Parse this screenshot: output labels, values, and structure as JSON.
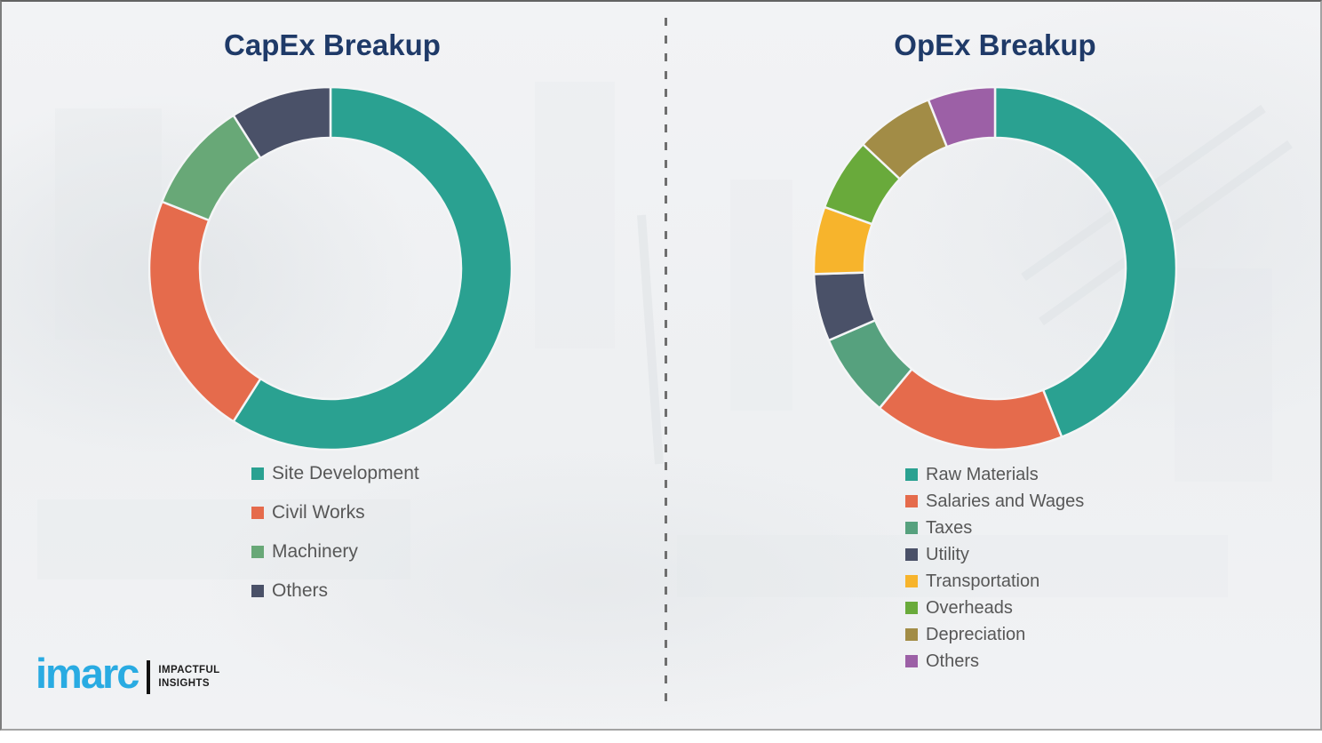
{
  "page": {
    "background_color": "#eef0f2",
    "frame_border_color": "#8f8f8f",
    "divider_style": "vertical-dashed",
    "divider_color": "#6f6f6f"
  },
  "colors": {
    "title_text": "#1F3A68",
    "legend_text": "#575757",
    "segment_gap": "#f4f5f6"
  },
  "chart_data": [
    {
      "type": "pie",
      "subtype": "donut",
      "title": "CapEx Breakup",
      "categories": [
        "Site Development",
        "Civil Works",
        "Machinery",
        "Others"
      ],
      "values": [
        59,
        22,
        10,
        9
      ],
      "colors": [
        "#2AA191",
        "#E56B4C",
        "#68A877",
        "#4A5168"
      ],
      "start_angle_deg": 0,
      "direction": "clockwise",
      "legend_position": "below-left",
      "data_labels": false
    },
    {
      "type": "pie",
      "subtype": "donut",
      "title": "OpEx Breakup",
      "categories": [
        "Raw Materials",
        "Salaries and Wages",
        "Taxes",
        "Utility",
        "Transportation",
        "Overheads",
        "Depreciation",
        "Others"
      ],
      "values": [
        44,
        17,
        7.5,
        6,
        6,
        6.5,
        7,
        6
      ],
      "colors": [
        "#2AA191",
        "#E56B4C",
        "#56A17E",
        "#4A5168",
        "#F7B42C",
        "#69AA3B",
        "#A28C46",
        "#9C60A6"
      ],
      "start_angle_deg": 0,
      "direction": "clockwise",
      "legend_position": "below-left",
      "data_labels": false
    }
  ],
  "logo": {
    "brand": "imarc",
    "brand_color": "#29ABE2",
    "tagline_line1": "IMPACTFUL",
    "tagline_line2": "INSIGHTS"
  }
}
